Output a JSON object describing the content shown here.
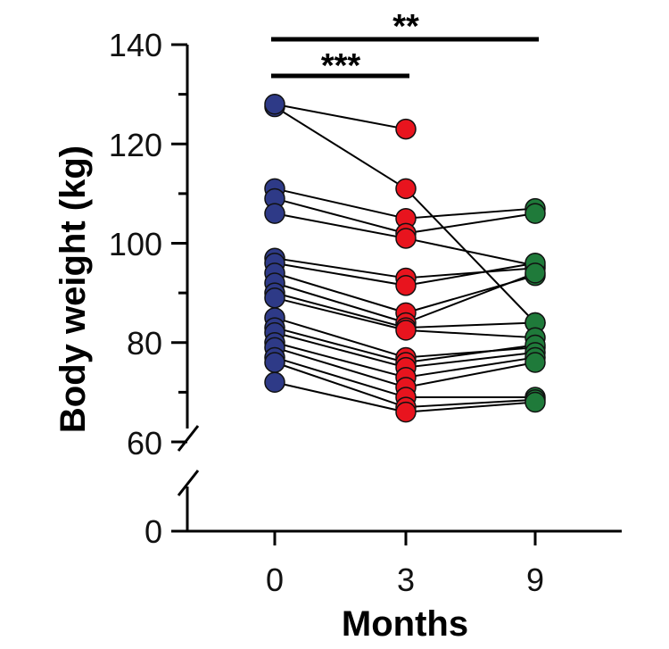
{
  "chart_data": {
    "type": "scatter",
    "subtype": "paired-dot-plot",
    "x_categories": [
      "0",
      "3",
      "9"
    ],
    "xlabel": "Months",
    "ylabel": "Body weight (kg)",
    "y_ticks_upper": [
      60,
      80,
      100,
      120,
      140
    ],
    "y_ticks_lower": [
      0
    ],
    "ylim_upper": [
      60,
      140
    ],
    "axis_break": true,
    "grid": false,
    "series_colors": {
      "0": "#2e3a87",
      "3": "#e8141e",
      "9": "#1f7a3a"
    },
    "subjects": [
      {
        "month0": 127.5,
        "month3": 111.0,
        "month9": 84.0
      },
      {
        "month0": 128.0,
        "month3": 123.0
      },
      {
        "month0": 111.0,
        "month3": 105.0,
        "month9": 107.0
      },
      {
        "month0": 109.0,
        "month3": 102.0,
        "month9": 106.0
      },
      {
        "month0": 106.0,
        "month3": 101.0,
        "month9": 95.5
      },
      {
        "month0": 97.0,
        "month3": 93.0,
        "month9": 95.0
      },
      {
        "month0": 96.0,
        "month3": 91.5,
        "month9": 96.0
      },
      {
        "month0": 94.0,
        "month3": 86.0,
        "month9": 93.5
      },
      {
        "month0": 92.0,
        "month3": 84.0,
        "month9": 94.0
      },
      {
        "month0": 90.0,
        "month3": 83.0,
        "month9": 84.0
      },
      {
        "month0": 89.0,
        "month3": 82.5,
        "month9": 81.0
      },
      {
        "month0": 85.0,
        "month3": 77.0,
        "month9": 79.0
      },
      {
        "month0": 83.0,
        "month3": 76.0,
        "month9": 79.5
      },
      {
        "month0": 82.0,
        "month3": 75.0,
        "month9": 78.0
      },
      {
        "month0": 80.0,
        "month3": 73.0,
        "month9": 77.0
      },
      {
        "month0": 79.0,
        "month3": 71.0,
        "month9": 76.0
      },
      {
        "month0": 77.0,
        "month3": 69.0,
        "month9": 69.0
      },
      {
        "month0": 76.0,
        "month3": 67.0,
        "month9": 68.5
      },
      {
        "month0": 72.0,
        "month3": 66.0,
        "month9": 68.0
      }
    ],
    "significance": [
      {
        "from": "0",
        "to": "9",
        "label": "**"
      },
      {
        "from": "0",
        "to": "3",
        "label": "***"
      }
    ]
  }
}
